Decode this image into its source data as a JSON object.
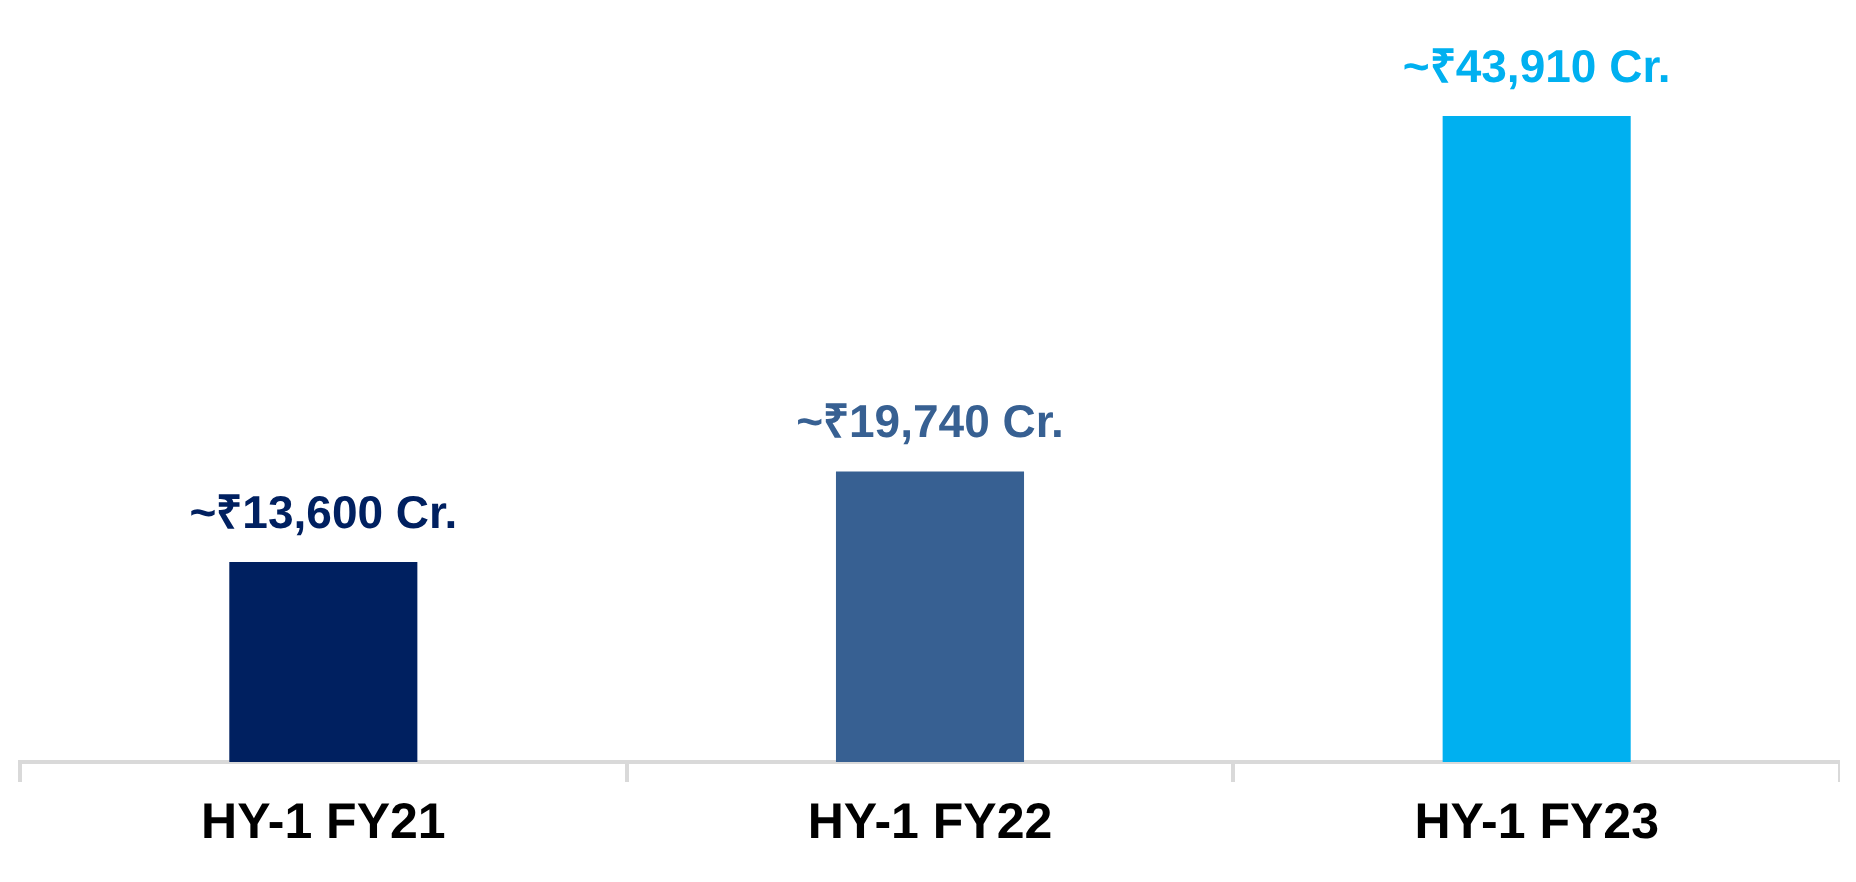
{
  "chart_data": {
    "type": "bar",
    "categories": [
      "HY-1 FY21",
      "HY-1 FY22",
      "HY-1 FY23"
    ],
    "values": [
      13600,
      19740,
      43910
    ],
    "colors": [
      "#002060",
      "#376092",
      "#00b0f0"
    ],
    "value_labels": [
      "~₹13,600 Cr.",
      "~₹19,740 Cr.",
      "~₹43,910 Cr."
    ],
    "grid": false,
    "legend": false
  }
}
